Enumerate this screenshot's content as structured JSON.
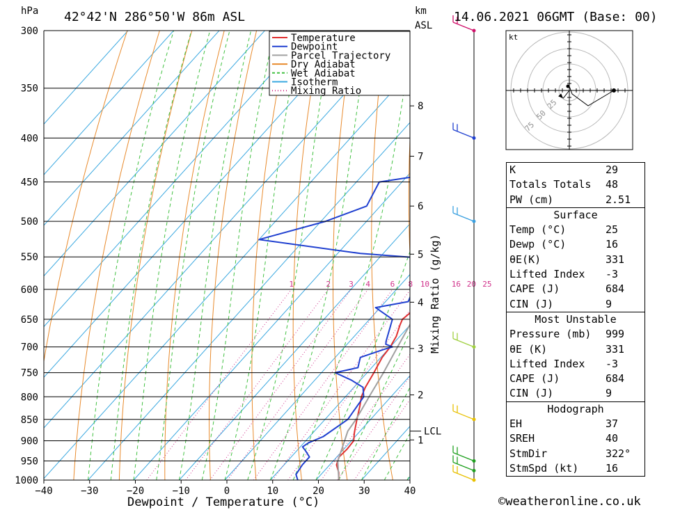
{
  "header": {
    "location": "42°42'N 286°50'W 86m ASL",
    "datetime": "14.06.2021 06GMT (Base: 00)",
    "pressure_unit": "hPa",
    "km_unit": "km",
    "asl_label": "ASL"
  },
  "chart_data": {
    "type": "skew-t",
    "title": "42°42'N 286°50'W 86m ASL",
    "xlabel": "Dewpoint / Temperature (°C)",
    "ylabel_left": "hPa",
    "ylabel_right": "Mixing Ratio (g/kg)",
    "x_ticks": [
      -40,
      -30,
      -20,
      -10,
      0,
      10,
      20,
      30,
      40
    ],
    "pressure_levels": [
      300,
      350,
      400,
      450,
      500,
      550,
      600,
      650,
      700,
      750,
      800,
      850,
      900,
      950,
      1000
    ],
    "km_ticks": [
      {
        "label": "8",
        "p": 367
      },
      {
        "label": "7",
        "p": 420
      },
      {
        "label": "6",
        "p": 480
      },
      {
        "label": "5",
        "p": 546
      },
      {
        "label": "4",
        "p": 621
      },
      {
        "label": "3",
        "p": 703
      },
      {
        "label": "2",
        "p": 796
      },
      {
        "label": "1",
        "p": 898
      }
    ],
    "lcl": {
      "label": "LCL",
      "p": 877
    },
    "mixing_ratio_labels": [
      "1",
      "2",
      "3",
      "4",
      "6",
      "8",
      "10",
      "16",
      "20",
      "25"
    ],
    "mixing_ratio_values": [
      1,
      2,
      3,
      4,
      6,
      8,
      10,
      16,
      20,
      25
    ],
    "legend": [
      "Temperature",
      "Dewpoint",
      "Parcel Trajectory",
      "Dry Adiabat",
      "Wet Adiabat",
      "Isotherm",
      "Mixing Ratio"
    ],
    "series": [
      {
        "name": "Temperature",
        "color": "#e03030",
        "points": [
          [
            1000,
            25
          ],
          [
            980,
            23.5
          ],
          [
            960,
            21.5
          ],
          [
            940,
            20.5
          ],
          [
            920,
            20.7
          ],
          [
            900,
            20.5
          ],
          [
            880,
            19
          ],
          [
            850,
            17
          ],
          [
            820,
            15
          ],
          [
            800,
            13.5
          ],
          [
            780,
            12.5
          ],
          [
            750,
            11.5
          ],
          [
            720,
            10.3
          ],
          [
            700,
            10
          ],
          [
            680,
            9.2
          ],
          [
            660,
            7.8
          ],
          [
            650,
            7.2
          ],
          [
            640,
            7.6
          ],
          [
            620,
            6.9
          ],
          [
            600,
            5.8
          ],
          [
            580,
            4.2
          ],
          [
            560,
            2.6
          ],
          [
            550,
            2.4
          ],
          [
            520,
            1.2
          ],
          [
            500,
            -1.0
          ],
          [
            480,
            -3.5
          ],
          [
            450,
            -5.6
          ],
          [
            420,
            -8.0
          ],
          [
            400,
            -10.8
          ],
          [
            380,
            -13.0
          ],
          [
            350,
            -17.5
          ],
          [
            330,
            -20.5
          ],
          [
            320,
            -21.5
          ],
          [
            310,
            -22.6
          ],
          [
            300,
            -24.8
          ]
        ]
      },
      {
        "name": "Dewpoint",
        "color": "#2040d0",
        "points": [
          [
            1000,
            16
          ],
          [
            985,
            14.5
          ],
          [
            960,
            14
          ],
          [
            940,
            14
          ],
          [
            925,
            12
          ],
          [
            915,
            10.5
          ],
          [
            905,
            11
          ],
          [
            890,
            13
          ],
          [
            850,
            15
          ],
          [
            800,
            14
          ],
          [
            780,
            12
          ],
          [
            765,
            8
          ],
          [
            750,
            3
          ],
          [
            740,
            7
          ],
          [
            720,
            5.5
          ],
          [
            705,
            9
          ],
          [
            700,
            10.5
          ],
          [
            695,
            8.5
          ],
          [
            690,
            8
          ],
          [
            650,
            5
          ],
          [
            630,
            -1
          ],
          [
            620,
            5
          ],
          [
            590,
            3
          ],
          [
            580,
            4
          ],
          [
            570,
            6
          ],
          [
            560,
            7.5
          ],
          [
            555,
            6.5
          ],
          [
            545,
            -15
          ],
          [
            525,
            -40
          ],
          [
            500,
            -29
          ],
          [
            480,
            -23
          ],
          [
            450,
            -25
          ],
          [
            430,
            -4
          ],
          [
            400,
            -1
          ],
          [
            380,
            -5
          ],
          [
            370,
            -6.5
          ],
          [
            352,
            -8
          ],
          [
            340,
            -15
          ],
          [
            330,
            -35
          ],
          [
            318,
            -40
          ],
          [
            300,
            -18
          ]
        ]
      },
      {
        "name": "Parcel Trajectory",
        "color": "#a0a0a0",
        "points": [
          [
            1000,
            25
          ],
          [
            950,
            21
          ],
          [
            900,
            18.5
          ],
          [
            877,
            17.3
          ],
          [
            850,
            16.8
          ],
          [
            800,
            15.2
          ],
          [
            750,
            13.6
          ],
          [
            700,
            11.6
          ],
          [
            650,
            9.5
          ],
          [
            600,
            7.3
          ],
          [
            550,
            4.5
          ],
          [
            500,
            1.3
          ],
          [
            450,
            -2.4
          ],
          [
            400,
            -6.8
          ],
          [
            350,
            -11.8
          ],
          [
            300,
            -17.7
          ]
        ]
      }
    ],
    "wind_barbs": [
      {
        "p": 1000,
        "color": "#e8c000"
      },
      {
        "p": 975,
        "color": "#20a020"
      },
      {
        "p": 950,
        "color": "#20a020"
      },
      {
        "p": 850,
        "color": "#e8c000"
      },
      {
        "p": 700,
        "color": "#a0d040"
      },
      {
        "p": 500,
        "color": "#3aa0e0"
      },
      {
        "p": 400,
        "color": "#2040d0"
      },
      {
        "p": 300,
        "color": "#d0106a"
      }
    ],
    "hodograph": {
      "unit": "kt",
      "ring_labels": [
        "25",
        "50",
        "75"
      ],
      "storm_motion": {
        "dir_deg": 322,
        "speed_kt": 16
      }
    }
  },
  "stats": {
    "indices": [
      {
        "label": "K",
        "value": "29"
      },
      {
        "label": "Totals Totals",
        "value": "48"
      },
      {
        "label": "PW (cm)",
        "value": "2.51"
      }
    ],
    "surface": {
      "title": "Surface",
      "rows": [
        {
          "label": "Temp (°C)",
          "value": "25"
        },
        {
          "label": "Dewp (°C)",
          "value": "16"
        },
        {
          "label": "θE(K)",
          "value": "331"
        },
        {
          "label": "Lifted Index",
          "value": "-3"
        },
        {
          "label": "CAPE (J)",
          "value": "684"
        },
        {
          "label": "CIN (J)",
          "value": "9"
        }
      ]
    },
    "most_unstable": {
      "title": "Most Unstable",
      "rows": [
        {
          "label": "Pressure (mb)",
          "value": "999"
        },
        {
          "label": "θE (K)",
          "value": "331"
        },
        {
          "label": "Lifted Index",
          "value": "-3"
        },
        {
          "label": "CAPE (J)",
          "value": "684"
        },
        {
          "label": "CIN (J)",
          "value": "9"
        }
      ]
    },
    "hodograph": {
      "title": "Hodograph",
      "rows": [
        {
          "label": "EH",
          "value": "37"
        },
        {
          "label": "SREH",
          "value": "40"
        },
        {
          "label": "StmDir",
          "value": "322°"
        },
        {
          "label": "StmSpd (kt)",
          "value": "16"
        }
      ]
    }
  },
  "footer": "©weatheronline.co.uk"
}
